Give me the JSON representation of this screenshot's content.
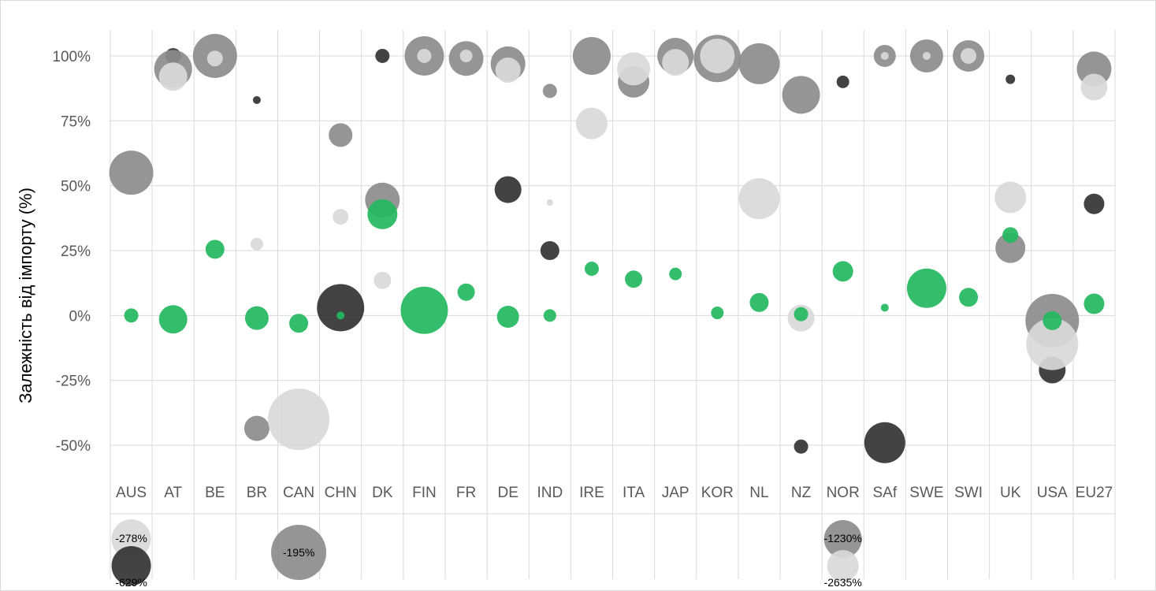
{
  "colors": {
    "dark": "#333333",
    "mid": "#8c8c8c",
    "light": "#d9d9d9",
    "green": "#23b85f",
    "grid": "#d9d9d9",
    "text": "#595959"
  },
  "chart_data": {
    "type": "bubble",
    "title": "",
    "xlabel": "",
    "ylabel": "Залежність від імпорту (%)",
    "ylim": [
      -60,
      110
    ],
    "yticks": [
      -50,
      -25,
      0,
      25,
      50,
      75,
      100
    ],
    "ytick_labels": [
      "-50%",
      "-25%",
      "0%",
      "25%",
      "50%",
      "75%",
      "100%"
    ],
    "grid": true,
    "legend": "none",
    "categories": [
      "AUS",
      "AT",
      "BE",
      "BR",
      "CAN",
      "CHN",
      "DK",
      "FIN",
      "FR",
      "DE",
      "IND",
      "IRE",
      "ITA",
      "JAP",
      "KOR",
      "NL",
      "NZ",
      "NOR",
      "SAf",
      "SWE",
      "SWI",
      "UK",
      "USA",
      "EU27"
    ],
    "series": [
      {
        "color_key": "dark",
        "points": [
          {
            "category": "AT",
            "y": 100,
            "size": 10
          },
          {
            "category": "BR",
            "y": 83,
            "size": 5
          },
          {
            "category": "CHN",
            "y": 3,
            "size": 30
          },
          {
            "category": "DK",
            "y": 100,
            "size": 9
          },
          {
            "category": "DE",
            "y": 48.5,
            "size": 17
          },
          {
            "category": "IND",
            "y": 25,
            "size": 12
          },
          {
            "category": "NZ",
            "y": -50.5,
            "size": 9
          },
          {
            "category": "NOR",
            "y": 90,
            "size": 8
          },
          {
            "category": "SAf",
            "y": -49,
            "size": 26
          },
          {
            "category": "UK",
            "y": 91,
            "size": 6
          },
          {
            "category": "USA",
            "y": -21,
            "size": 17
          },
          {
            "category": "EU27",
            "y": 43,
            "size": 13
          }
        ]
      },
      {
        "color_key": "mid",
        "points": [
          {
            "category": "AUS",
            "y": 55,
            "size": 28
          },
          {
            "category": "AT",
            "y": 95,
            "size": 24
          },
          {
            "category": "BE",
            "y": 100,
            "size": 28
          },
          {
            "category": "BR",
            "y": -43.5,
            "size": 16
          },
          {
            "category": "CHN",
            "y": 69.5,
            "size": 15
          },
          {
            "category": "DK",
            "y": 44.5,
            "size": 22
          },
          {
            "category": "FIN",
            "y": 100,
            "size": 25
          },
          {
            "category": "FR",
            "y": 99,
            "size": 22
          },
          {
            "category": "DE",
            "y": 97,
            "size": 22
          },
          {
            "category": "IND",
            "y": 86.5,
            "size": 9
          },
          {
            "category": "IRE",
            "y": 100,
            "size": 24
          },
          {
            "category": "ITA",
            "y": 90,
            "size": 20
          },
          {
            "category": "JAP",
            "y": 100,
            "size": 23
          },
          {
            "category": "KOR",
            "y": 99,
            "size": 30
          },
          {
            "category": "NL",
            "y": 97,
            "size": 26
          },
          {
            "category": "NZ",
            "y": 85,
            "size": 24
          },
          {
            "category": "SAf",
            "y": 100,
            "size": 14
          },
          {
            "category": "SWE",
            "y": 100,
            "size": 21
          },
          {
            "category": "SWI",
            "y": 100,
            "size": 20
          },
          {
            "category": "UK",
            "y": 26,
            "size": 19
          },
          {
            "category": "USA",
            "y": -2,
            "size": 34
          },
          {
            "category": "EU27",
            "y": 95,
            "size": 22
          }
        ]
      },
      {
        "color_key": "light",
        "points": [
          {
            "category": "AT",
            "y": 92,
            "size": 18
          },
          {
            "category": "BE",
            "y": 99,
            "size": 10
          },
          {
            "category": "BR",
            "y": 27.5,
            "size": 8
          },
          {
            "category": "CAN",
            "y": -40,
            "size": 39
          },
          {
            "category": "CHN",
            "y": 38,
            "size": 10
          },
          {
            "category": "DK",
            "y": 13.5,
            "size": 11
          },
          {
            "category": "FIN",
            "y": 100,
            "size": 9
          },
          {
            "category": "FR",
            "y": 100,
            "size": 8
          },
          {
            "category": "DE",
            "y": 94.5,
            "size": 16
          },
          {
            "category": "IND",
            "y": 43.5,
            "size": 4
          },
          {
            "category": "IRE",
            "y": 74,
            "size": 20
          },
          {
            "category": "ITA",
            "y": 95,
            "size": 21
          },
          {
            "category": "JAP",
            "y": 97.5,
            "size": 17
          },
          {
            "category": "KOR",
            "y": 100,
            "size": 22
          },
          {
            "category": "NL",
            "y": 45,
            "size": 26
          },
          {
            "category": "NZ",
            "y": -1,
            "size": 17
          },
          {
            "category": "SAf",
            "y": 100,
            "size": 5
          },
          {
            "category": "SWE",
            "y": 100,
            "size": 5
          },
          {
            "category": "SWI",
            "y": 100,
            "size": 10
          },
          {
            "category": "UK",
            "y": 45.5,
            "size": 20
          },
          {
            "category": "USA",
            "y": -11,
            "size": 33
          },
          {
            "category": "EU27",
            "y": 88,
            "size": 17
          }
        ]
      },
      {
        "color_key": "green",
        "points": [
          {
            "category": "AUS",
            "y": 0,
            "size": 9
          },
          {
            "category": "AT",
            "y": -1.5,
            "size": 18
          },
          {
            "category": "BE",
            "y": 25.5,
            "size": 12
          },
          {
            "category": "BR",
            "y": -1,
            "size": 15
          },
          {
            "category": "CAN",
            "y": -3,
            "size": 12
          },
          {
            "category": "CHN",
            "y": 0,
            "size": 5
          },
          {
            "category": "DK",
            "y": 39,
            "size": 19
          },
          {
            "category": "FIN",
            "y": 2,
            "size": 30
          },
          {
            "category": "FR",
            "y": 9,
            "size": 11
          },
          {
            "category": "DE",
            "y": -0.5,
            "size": 14
          },
          {
            "category": "IND",
            "y": 0,
            "size": 8
          },
          {
            "category": "IRE",
            "y": 18,
            "size": 9
          },
          {
            "category": "ITA",
            "y": 14,
            "size": 11
          },
          {
            "category": "JAP",
            "y": 16,
            "size": 8
          },
          {
            "category": "KOR",
            "y": 1,
            "size": 8
          },
          {
            "category": "NL",
            "y": 5,
            "size": 12
          },
          {
            "category": "NZ",
            "y": 0.5,
            "size": 9
          },
          {
            "category": "NOR",
            "y": 17,
            "size": 13
          },
          {
            "category": "SAf",
            "y": 3,
            "size": 5
          },
          {
            "category": "SWE",
            "y": 10.5,
            "size": 25
          },
          {
            "category": "SWI",
            "y": 7,
            "size": 12
          },
          {
            "category": "UK",
            "y": 31,
            "size": 10
          },
          {
            "category": "USA",
            "y": -2,
            "size": 12
          },
          {
            "category": "EU27",
            "y": 4.5,
            "size": 13
          }
        ]
      }
    ],
    "offscale_points": [
      {
        "category": "AUS",
        "color_key": "light",
        "size": 25,
        "label": "-278%"
      },
      {
        "category": "AUS",
        "color_key": "dark",
        "size": 25,
        "label": "-629%"
      },
      {
        "category": "CAN",
        "color_key": "mid",
        "size": 35,
        "label": "-195%"
      },
      {
        "category": "NOR",
        "color_key": "mid",
        "size": 24,
        "label": "-1230%"
      },
      {
        "category": "NOR",
        "color_key": "light",
        "size": 20,
        "label": "-2635%"
      }
    ]
  }
}
